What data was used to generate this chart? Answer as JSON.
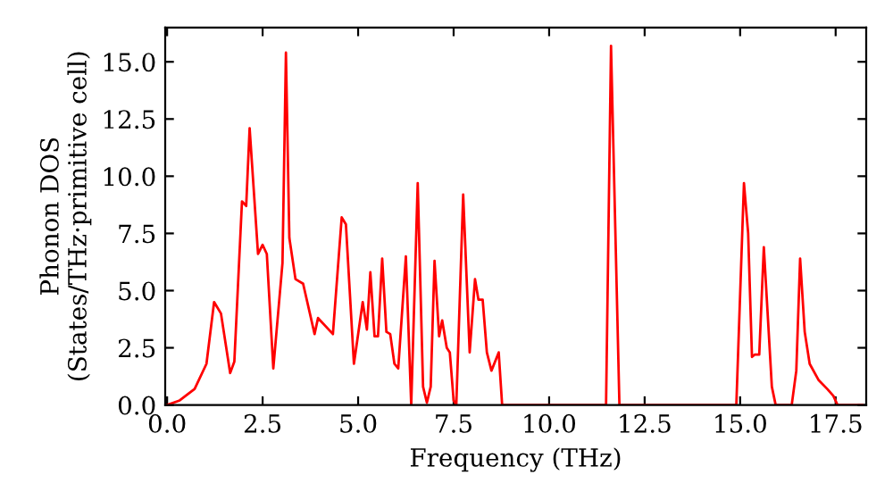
{
  "chart_data": {
    "type": "line",
    "xlabel": "Frequency (THz)",
    "ylabel": "Phonon DOS\n(States/THz·primitive cell)",
    "series": [
      {
        "color": "#ff0000",
        "x": [
          0.0,
          0.33,
          0.72,
          1.03,
          1.23,
          1.41,
          1.65,
          1.76,
          1.96,
          2.07,
          2.16,
          2.38,
          2.5,
          2.61,
          2.78,
          3.02,
          3.11,
          3.2,
          3.36,
          3.56,
          3.86,
          3.95,
          4.34,
          4.57,
          4.68,
          4.89,
          5.12,
          5.23,
          5.32,
          5.43,
          5.52,
          5.63,
          5.74,
          5.84,
          5.95,
          6.05,
          6.25,
          6.39,
          6.56,
          6.7,
          6.8,
          6.9,
          7.0,
          7.12,
          7.2,
          7.32,
          7.4,
          7.5,
          7.57,
          7.75,
          7.92,
          8.06,
          8.15,
          8.26,
          8.37,
          8.49,
          8.68,
          8.77,
          11.49,
          11.62,
          11.84,
          14.9,
          15.1,
          15.21,
          15.31,
          15.38,
          15.5,
          15.62,
          15.83,
          15.93,
          16.35,
          16.47,
          16.57,
          16.69,
          16.82,
          17.05,
          17.28,
          17.44,
          17.55,
          18.2
        ],
        "values": [
          0,
          0.2,
          0.7,
          1.8,
          4.5,
          4.0,
          1.4,
          1.9,
          8.9,
          8.7,
          12.1,
          6.6,
          7.0,
          6.6,
          1.6,
          6.2,
          15.4,
          7.3,
          5.5,
          5.3,
          3.1,
          3.8,
          3.1,
          8.2,
          7.9,
          1.8,
          4.5,
          3.3,
          5.8,
          3.0,
          3.0,
          6.4,
          3.2,
          3.1,
          1.8,
          1.6,
          6.5,
          0,
          9.7,
          0.8,
          0.1,
          0.8,
          6.3,
          3.0,
          3.7,
          2.5,
          2.3,
          0.2,
          0,
          9.2,
          2.3,
          5.5,
          4.6,
          4.6,
          2.3,
          1.5,
          2.3,
          0,
          0,
          15.7,
          0,
          0,
          9.7,
          7.5,
          2.1,
          2.2,
          2.2,
          6.9,
          0.8,
          0,
          0,
          1.5,
          6.4,
          3.2,
          1.8,
          1.1,
          0.7,
          0.4,
          0,
          0
        ]
      }
    ],
    "xlim": [
      -0.05,
      18.3
    ],
    "ylim": [
      0,
      16.5
    ],
    "xticks": [
      {
        "value": 0,
        "label": "0.0"
      },
      {
        "value": 2.5,
        "label": "2.5"
      },
      {
        "value": 5,
        "label": "5.0"
      },
      {
        "value": 7.5,
        "label": "7.5"
      },
      {
        "value": 10,
        "label": "10.0"
      },
      {
        "value": 12.5,
        "label": "12.5"
      },
      {
        "value": 15,
        "label": "15.0"
      },
      {
        "value": 17.5,
        "label": "17.5"
      }
    ],
    "yticks": [
      {
        "value": 0,
        "label": "0.0"
      },
      {
        "value": 2.5,
        "label": "2.5"
      },
      {
        "value": 5,
        "label": "5.0"
      },
      {
        "value": 7.5,
        "label": "7.5"
      },
      {
        "value": 10,
        "label": "10.0"
      },
      {
        "value": 12.5,
        "label": "12.5"
      },
      {
        "value": 15,
        "label": "15.0"
      }
    ],
    "grid": false,
    "marker": "none",
    "line_style": "solid"
  }
}
